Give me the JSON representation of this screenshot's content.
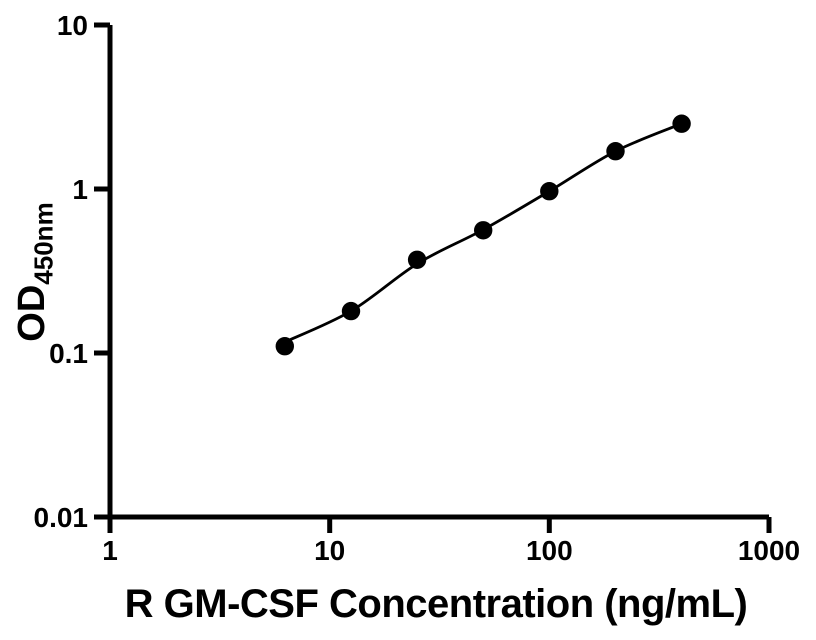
{
  "chart_data": {
    "type": "scatter",
    "title": "",
    "xlabel": "R GM-CSF Concentration (ng/mL)",
    "ylabel": "OD",
    "ylabel_subscript": "450nm",
    "x_scale": "log",
    "y_scale": "log",
    "xlim": [
      1,
      1000
    ],
    "ylim": [
      0.01,
      10
    ],
    "x_ticks": [
      1,
      10,
      100,
      1000
    ],
    "x_tick_labels": [
      "1",
      "10",
      "100",
      "1000"
    ],
    "y_ticks": [
      10,
      1,
      0.1,
      0.01
    ],
    "y_tick_labels": [
      "10",
      "1",
      "0.1",
      "0.01"
    ],
    "grid": false,
    "legend": "none",
    "series": [
      {
        "name": "standard-curve",
        "marker": "filled-circle",
        "marker_color": "#000000",
        "line_color": "#000000",
        "points": [
          {
            "x": 6.25,
            "y": 0.11
          },
          {
            "x": 12.5,
            "y": 0.18
          },
          {
            "x": 25,
            "y": 0.37
          },
          {
            "x": 50,
            "y": 0.56
          },
          {
            "x": 100,
            "y": 0.97
          },
          {
            "x": 200,
            "y": 1.7
          },
          {
            "x": 400,
            "y": 2.5
          }
        ],
        "fit_curve": [
          {
            "x": 6.1,
            "y": 0.115
          },
          {
            "x": 12.5,
            "y": 0.18
          },
          {
            "x": 25,
            "y": 0.35
          },
          {
            "x": 50,
            "y": 0.565
          },
          {
            "x": 100,
            "y": 0.97
          },
          {
            "x": 200,
            "y": 1.7
          },
          {
            "x": 400,
            "y": 2.5
          }
        ]
      }
    ],
    "colors": {
      "axis": "#000000",
      "text": "#000000",
      "background": "#ffffff",
      "marker": "#000000"
    }
  }
}
